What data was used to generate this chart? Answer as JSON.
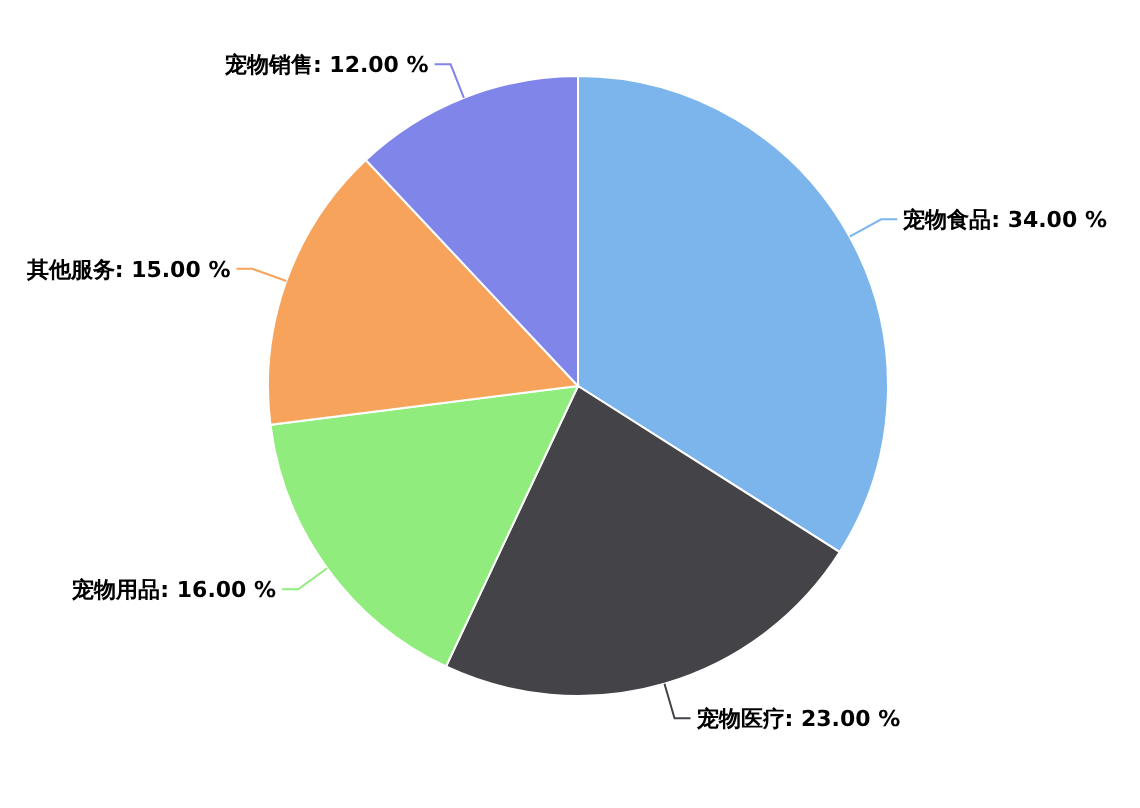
{
  "chart_data": {
    "type": "pie",
    "categories": [
      "宠物食品",
      "宠物医疗",
      "宠物用品",
      "其他服务",
      "宠物销售"
    ],
    "values": [
      34,
      23,
      16,
      15,
      12
    ],
    "colors": [
      "#7cb5ec",
      "#434348",
      "#90ed7d",
      "#f7a35c",
      "#8085e9"
    ],
    "value_labels": [
      "34.00 %",
      "23.00 %",
      "16.00 %",
      "15.00 %",
      "12.00 %"
    ]
  }
}
